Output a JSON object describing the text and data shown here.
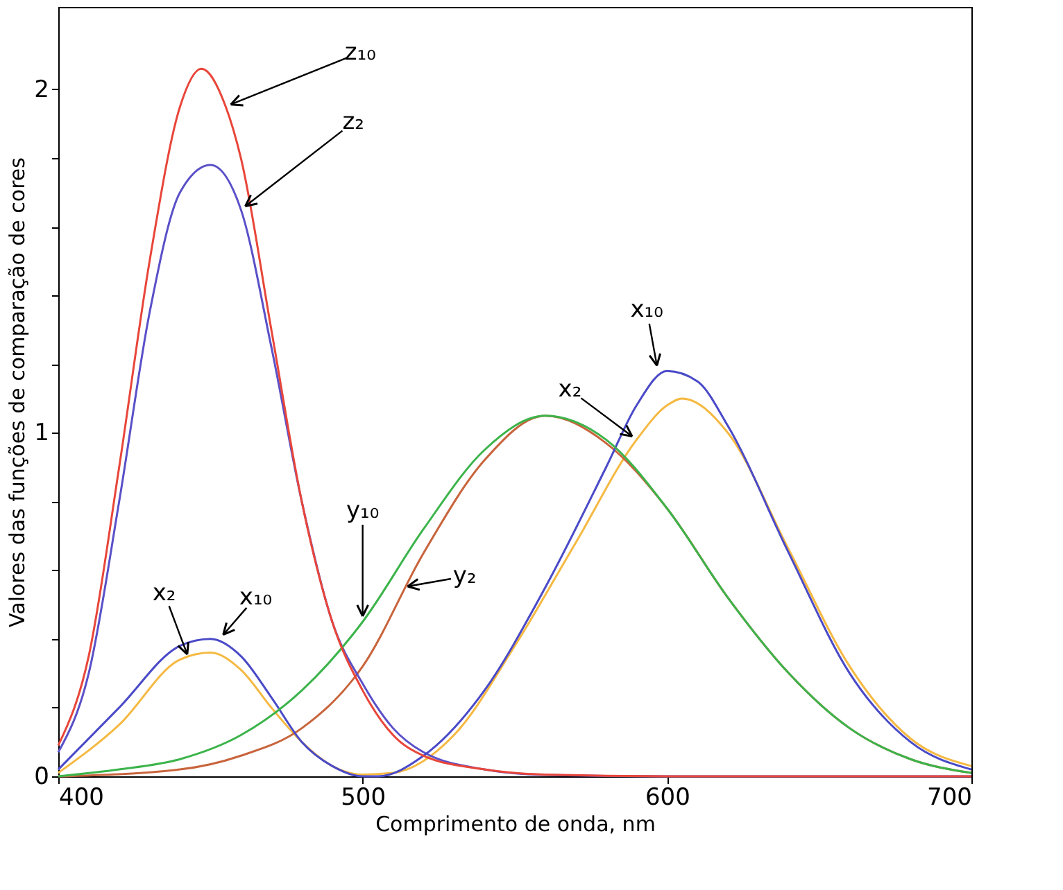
{
  "chart_data": {
    "type": "line",
    "xlabel": "Comprimento de onda, nm",
    "ylabel": "Valores das funções de comparação de cores",
    "xlim": [
      400,
      700
    ],
    "xticks": [
      400,
      500,
      600,
      700
    ],
    "ylim": [
      0,
      2.24
    ],
    "yticks": [
      0,
      {
        "value": 0.2,
        "label": null
      },
      {
        "value": 0.4,
        "label": null
      },
      {
        "value": 0.6,
        "label": null
      },
      {
        "value": 0.8,
        "label": null
      },
      1,
      {
        "value": 1.2,
        "label": null
      },
      {
        "value": 1.4,
        "label": null
      },
      {
        "value": 1.6,
        "label": null
      },
      {
        "value": 1.8,
        "label": null
      },
      2
    ],
    "grid": false,
    "marker": "none",
    "line_style": "solid",
    "series": [
      {
        "color": "#f5b942",
        "x": [
          400,
          420,
          440,
          450,
          460,
          470,
          480,
          490,
          500,
          510,
          530,
          550,
          570,
          590,
          600,
          605,
          620,
          640,
          660,
          680,
          700
        ],
        "values": [
          0.01,
          0.15,
          0.34,
          0.36,
          0.31,
          0.2,
          0.1,
          0.03,
          0.005,
          0.01,
          0.12,
          0.38,
          0.68,
          0.98,
          1.08,
          1.1,
          1.0,
          0.66,
          0.32,
          0.11,
          0.03
        ]
      },
      {
        "color": "#c8643c",
        "x": [
          400,
          440,
          460,
          480,
          500,
          520,
          540,
          560,
          580,
          600,
          620,
          640,
          660,
          680,
          700
        ],
        "values": [
          0.0,
          0.02,
          0.06,
          0.14,
          0.32,
          0.65,
          0.92,
          1.05,
          0.97,
          0.78,
          0.52,
          0.3,
          0.14,
          0.05,
          0.01
        ]
      },
      {
        "color": "#5a50c8",
        "x": [
          400,
          410,
          420,
          430,
          440,
          450,
          460,
          470,
          480,
          490,
          500,
          510,
          520,
          540,
          560,
          600,
          700
        ],
        "values": [
          0.07,
          0.3,
          0.8,
          1.35,
          1.7,
          1.78,
          1.65,
          1.25,
          0.8,
          0.45,
          0.27,
          0.14,
          0.07,
          0.02,
          0.004,
          0,
          0
        ]
      },
      {
        "color": "#4a4ac8",
        "x": [
          400,
          420,
          440,
          450,
          460,
          470,
          480,
          490,
          500,
          505,
          520,
          540,
          560,
          580,
          590,
          600,
          610,
          620,
          640,
          660,
          680,
          700
        ],
        "values": [
          0.02,
          0.2,
          0.38,
          0.4,
          0.35,
          0.23,
          0.1,
          0.03,
          0.0,
          0.0,
          0.06,
          0.25,
          0.55,
          0.9,
          1.08,
          1.18,
          1.15,
          1.02,
          0.65,
          0.3,
          0.1,
          0.02
        ]
      },
      {
        "color": "#3cb44b",
        "x": [
          400,
          420,
          440,
          460,
          480,
          500,
          520,
          540,
          560,
          580,
          600,
          620,
          640,
          660,
          680,
          700
        ],
        "values": [
          0.0,
          0.02,
          0.05,
          0.12,
          0.25,
          0.45,
          0.72,
          0.95,
          1.05,
          0.98,
          0.78,
          0.52,
          0.3,
          0.14,
          0.05,
          0.01
        ]
      },
      {
        "color": "#e8463a",
        "x": [
          400,
          410,
          420,
          430,
          440,
          447,
          455,
          460,
          470,
          480,
          490,
          500,
          510,
          520,
          540,
          560,
          600,
          700
        ],
        "values": [
          0.09,
          0.35,
          0.9,
          1.5,
          1.95,
          2.06,
          1.95,
          1.8,
          1.3,
          0.8,
          0.45,
          0.25,
          0.12,
          0.06,
          0.02,
          0.005,
          0,
          0
        ]
      }
    ],
    "annotations": [
      {
        "text": "z₁₀",
        "x": 455,
        "y": 1.95
      },
      {
        "text": "z₂",
        "x": 460,
        "y": 1.65
      },
      {
        "text": "x₂",
        "x": 443,
        "y": 0.34
      },
      {
        "text": "x₁₀",
        "x": 453,
        "y": 0.4
      },
      {
        "text": "y₁₀",
        "x": 500,
        "y": 0.45
      },
      {
        "text": "y₂",
        "x": 513,
        "y": 0.55
      },
      {
        "text": "x₂",
        "x": 590,
        "y": 0.98
      },
      {
        "text": "x₁₀",
        "x": 597,
        "y": 1.18
      }
    ]
  }
}
